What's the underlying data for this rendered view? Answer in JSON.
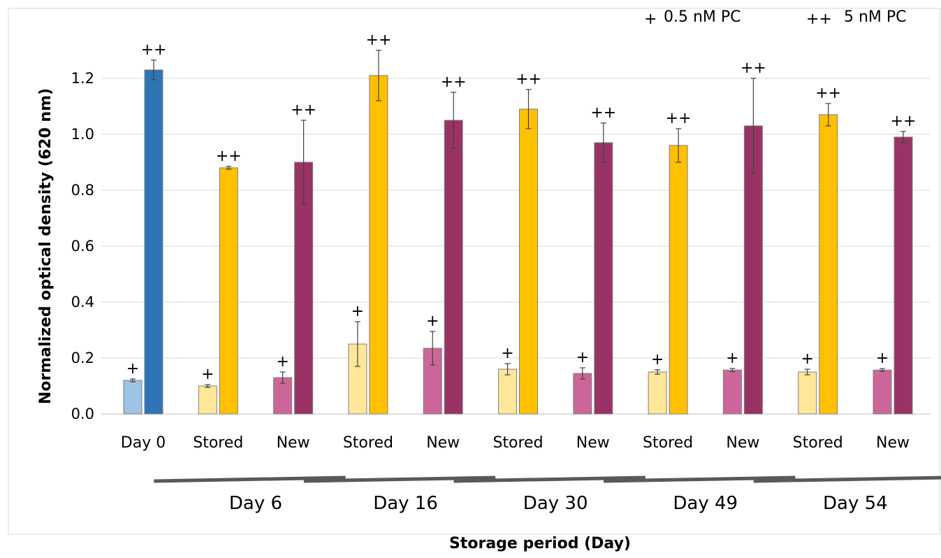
{
  "chart_data": {
    "type": "bar",
    "xlabel": "Storage period (Day)",
    "ylabel": "Normalized optical density (620 nm)",
    "ylim": [
      0,
      1.3
    ],
    "yticks": [
      "0.0",
      "0.2",
      "0.4",
      "0.6",
      "0.8",
      "1.0",
      "1.2"
    ],
    "grid": true,
    "legend": [
      {
        "symbol": "+",
        "label": "0.5 nM PC"
      },
      {
        "symbol": "++",
        "label": "5 nM PC"
      }
    ],
    "legend_position": "top-right",
    "categories": [
      "Day 0",
      "Stored",
      "New",
      "Stored",
      "New",
      "Stored",
      "New",
      "Stored",
      "New",
      "Stored",
      "New"
    ],
    "groups": [
      {
        "label": "Day 6",
        "categories": [
          1,
          2
        ]
      },
      {
        "label": "Day 16",
        "categories": [
          3,
          4
        ]
      },
      {
        "label": "Day 30",
        "categories": [
          5,
          6
        ]
      },
      {
        "label": "Day 49",
        "categories": [
          7,
          8
        ]
      },
      {
        "label": "Day 54",
        "categories": [
          9,
          10
        ]
      }
    ],
    "bars": [
      {
        "cat": 0,
        "marker": "+",
        "value": 0.12,
        "error": 0.005,
        "color": "#9dc3e6"
      },
      {
        "cat": 0,
        "marker": "++",
        "value": 1.23,
        "error": 0.035,
        "color": "#2e75b6"
      },
      {
        "cat": 1,
        "marker": "+",
        "value": 0.1,
        "error": 0.005,
        "color": "#ffe699"
      },
      {
        "cat": 1,
        "marker": "++",
        "value": 0.88,
        "error": 0.005,
        "color": "#ffc000"
      },
      {
        "cat": 2,
        "marker": "+",
        "value": 0.13,
        "error": 0.02,
        "color": "#cc6699"
      },
      {
        "cat": 2,
        "marker": "++",
        "value": 0.9,
        "error": 0.15,
        "color": "#993366"
      },
      {
        "cat": 3,
        "marker": "+",
        "value": 0.25,
        "error": 0.08,
        "color": "#ffe699"
      },
      {
        "cat": 3,
        "marker": "++",
        "value": 1.21,
        "error": 0.09,
        "color": "#ffc000"
      },
      {
        "cat": 4,
        "marker": "+",
        "value": 0.235,
        "error": 0.06,
        "color": "#cc6699"
      },
      {
        "cat": 4,
        "marker": "++",
        "value": 1.05,
        "error": 0.1,
        "color": "#993366"
      },
      {
        "cat": 5,
        "marker": "+",
        "value": 0.16,
        "error": 0.02,
        "color": "#ffe699"
      },
      {
        "cat": 5,
        "marker": "++",
        "value": 1.09,
        "error": 0.07,
        "color": "#ffc000"
      },
      {
        "cat": 6,
        "marker": "+",
        "value": 0.145,
        "error": 0.02,
        "color": "#cc6699"
      },
      {
        "cat": 6,
        "marker": "++",
        "value": 0.97,
        "error": 0.07,
        "color": "#993366"
      },
      {
        "cat": 7,
        "marker": "+",
        "value": 0.15,
        "error": 0.008,
        "color": "#ffe699"
      },
      {
        "cat": 7,
        "marker": "++",
        "value": 0.96,
        "error": 0.06,
        "color": "#ffc000"
      },
      {
        "cat": 8,
        "marker": "+",
        "value": 0.157,
        "error": 0.006,
        "color": "#cc6699"
      },
      {
        "cat": 8,
        "marker": "++",
        "value": 1.03,
        "error": 0.17,
        "color": "#993366"
      },
      {
        "cat": 9,
        "marker": "+",
        "value": 0.15,
        "error": 0.01,
        "color": "#ffe699"
      },
      {
        "cat": 9,
        "marker": "++",
        "value": 1.07,
        "error": 0.04,
        "color": "#ffc000"
      },
      {
        "cat": 10,
        "marker": "+",
        "value": 0.157,
        "error": 0.005,
        "color": "#cc6699"
      },
      {
        "cat": 10,
        "marker": "++",
        "value": 0.99,
        "error": 0.02,
        "color": "#993366"
      }
    ]
  }
}
